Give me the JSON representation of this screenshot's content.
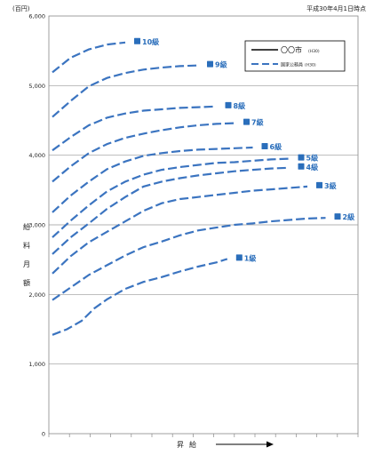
{
  "chart_data": {
    "type": "line",
    "unit_label": "(百円)",
    "date_label": "平成30年4月1日時点",
    "ylabel": "給料月額",
    "xlabel": "昇給",
    "ylim": [
      0,
      6000
    ],
    "yticks": [
      0,
      1000,
      2000,
      3000,
      4000,
      5000,
      6000
    ],
    "ytick_labels": [
      "0",
      "1,000",
      "2,000",
      "3,000",
      "4,000",
      "5,000",
      "6,000"
    ],
    "x_categories": 15,
    "grid": true,
    "legend_position": "top-right",
    "legend": [
      {
        "label": "〇〇市",
        "note": "(H30)",
        "style": "solid",
        "color": "#000000"
      },
      {
        "label": "国家公務員",
        "note": "(H30)",
        "style": "dashed",
        "color": "#3b74c0"
      }
    ],
    "series": [
      {
        "name": "1級",
        "x": [
          0,
          0.8,
          1.6,
          2.3,
          3,
          4,
          5,
          6,
          7,
          8,
          9,
          9.6
        ],
        "y": [
          1420,
          1500,
          1620,
          1800,
          1930,
          2080,
          2180,
          2250,
          2330,
          2400,
          2460,
          2510
        ]
      },
      {
        "name": "2級",
        "x": [
          0,
          1,
          2,
          3,
          4,
          5,
          6,
          7,
          8,
          9,
          10,
          11,
          12,
          13,
          14,
          15
        ],
        "y": [
          1920,
          2100,
          2280,
          2420,
          2560,
          2680,
          2760,
          2850,
          2920,
          2960,
          3000,
          3020,
          3050,
          3070,
          3090,
          3100
        ]
      },
      {
        "name": "3級",
        "x": [
          0,
          1,
          2,
          3,
          4,
          5,
          6,
          7,
          8,
          9,
          10,
          11,
          12,
          13,
          14
        ],
        "y": [
          2300,
          2550,
          2750,
          2900,
          3050,
          3200,
          3310,
          3370,
          3400,
          3430,
          3460,
          3490,
          3510,
          3530,
          3550
        ]
      },
      {
        "name": "4級",
        "x": [
          0,
          1,
          2,
          3,
          4,
          5,
          6,
          7,
          8,
          9,
          10,
          11,
          12,
          13
        ],
        "y": [
          2580,
          2820,
          3020,
          3230,
          3400,
          3550,
          3620,
          3670,
          3710,
          3740,
          3770,
          3790,
          3810,
          3820
        ]
      },
      {
        "name": "5級",
        "x": [
          0,
          1,
          2,
          3,
          4,
          5,
          6,
          7,
          8,
          9,
          10,
          11,
          12,
          13
        ],
        "y": [
          2820,
          3060,
          3280,
          3480,
          3620,
          3720,
          3790,
          3830,
          3860,
          3890,
          3900,
          3920,
          3940,
          3950
        ]
      },
      {
        "name": "6級",
        "x": [
          0,
          1,
          2,
          3,
          4,
          5,
          6,
          7,
          8,
          9,
          10,
          11
        ],
        "y": [
          3180,
          3420,
          3620,
          3800,
          3910,
          3990,
          4030,
          4060,
          4080,
          4090,
          4100,
          4110
        ]
      },
      {
        "name": "7級",
        "x": [
          0,
          1,
          2,
          3,
          4,
          5,
          6,
          7,
          8,
          9,
          10
        ],
        "y": [
          3620,
          3840,
          4030,
          4160,
          4250,
          4310,
          4360,
          4400,
          4430,
          4450,
          4460
        ]
      },
      {
        "name": "8級",
        "x": [
          0,
          1,
          2,
          3,
          4,
          5,
          6,
          7,
          8,
          9
        ],
        "y": [
          4070,
          4260,
          4430,
          4540,
          4600,
          4640,
          4660,
          4680,
          4690,
          4700
        ]
      },
      {
        "name": "9級",
        "x": [
          0,
          1,
          2,
          3,
          4,
          5,
          6,
          7,
          8
        ],
        "y": [
          4550,
          4780,
          4990,
          5110,
          5180,
          5230,
          5260,
          5280,
          5290
        ]
      },
      {
        "name": "10級",
        "x": [
          0,
          1,
          2,
          3,
          4
        ],
        "y": [
          5190,
          5400,
          5520,
          5590,
          5620
        ]
      }
    ]
  }
}
